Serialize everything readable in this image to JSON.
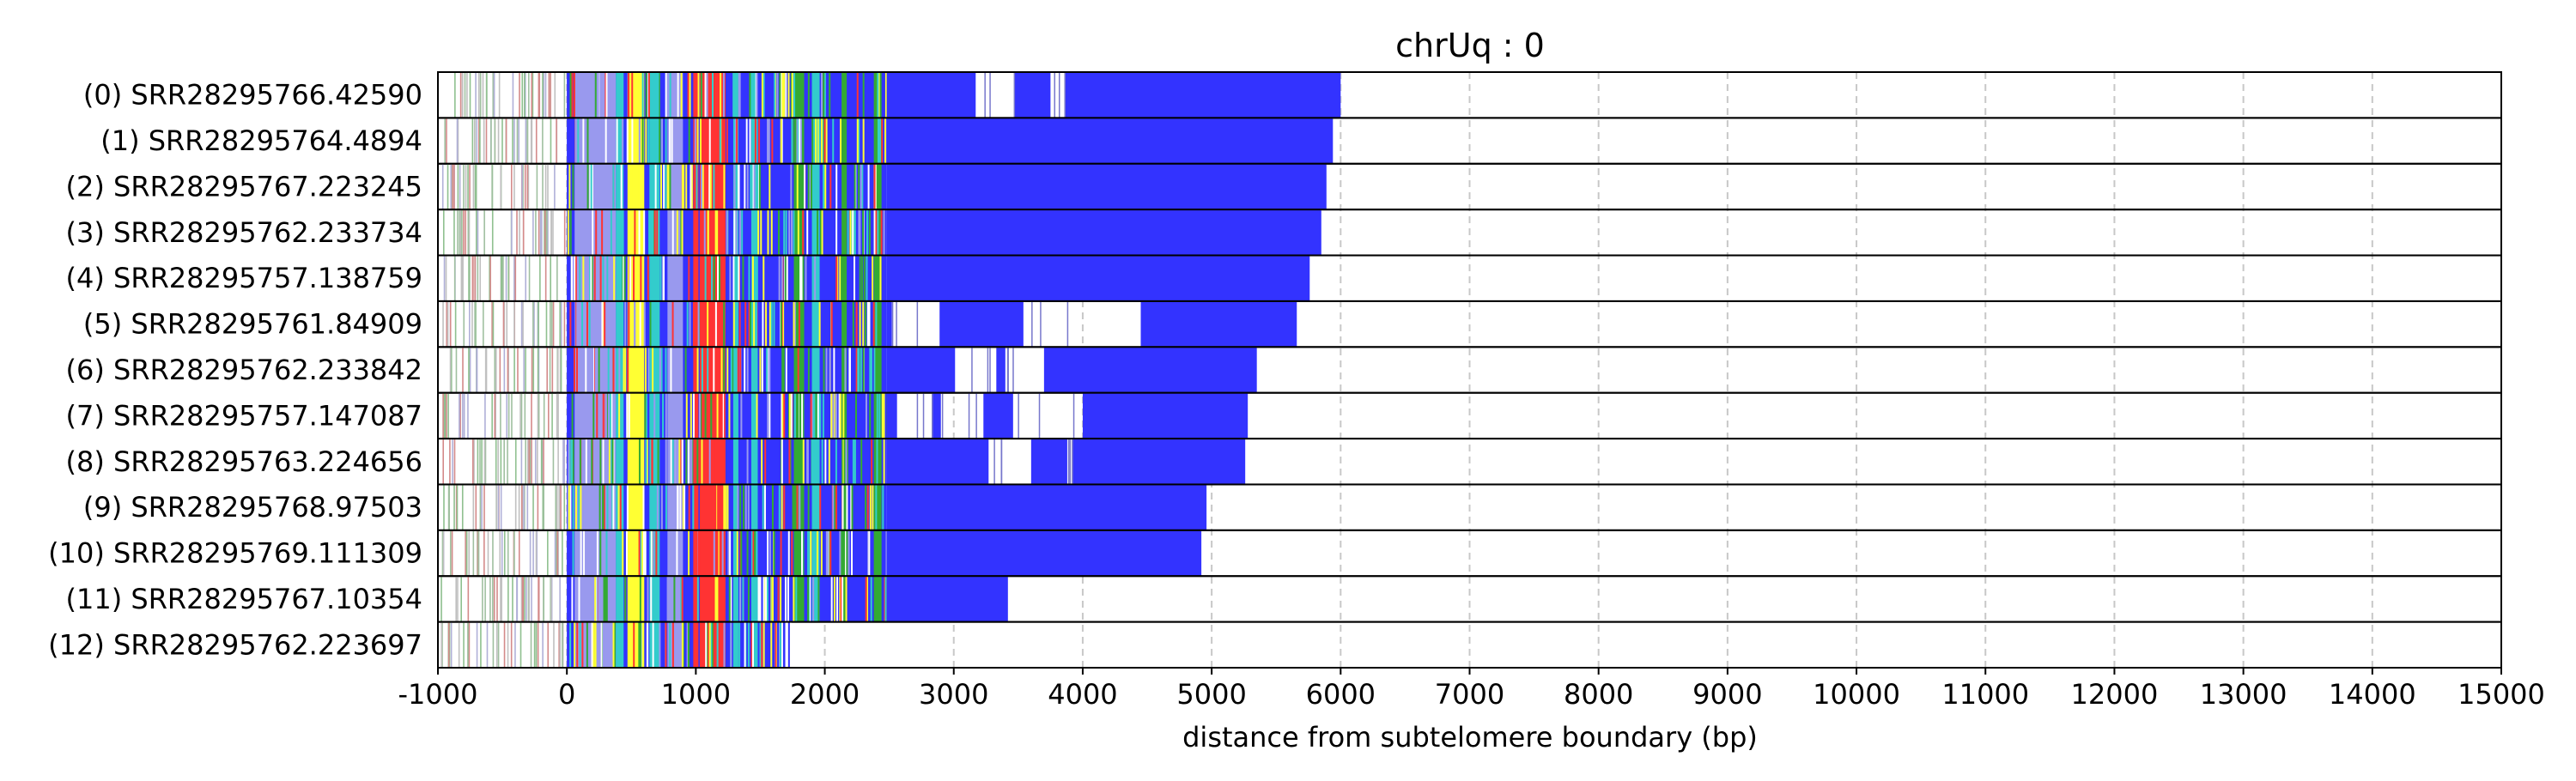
{
  "chart_data": {
    "type": "heatmap",
    "title": "chrUq : 0",
    "xlabel": "distance from subtelomere boundary (bp)",
    "ylabel": "",
    "xlim": [
      -1000,
      15000
    ],
    "xticks": [
      -1000,
      0,
      1000,
      2000,
      3000,
      4000,
      5000,
      6000,
      7000,
      8000,
      9000,
      10000,
      11000,
      12000,
      13000,
      14000,
      15000
    ],
    "xtick_labels": [
      "-1000",
      "0",
      "1000",
      "2000",
      "3000",
      "4000",
      "5000",
      "6000",
      "7000",
      "8000",
      "9000",
      "10000",
      "11000",
      "12000",
      "13000",
      "14000",
      "15000"
    ],
    "grid": "vertical dashed",
    "colors": {
      "telomere_repeat": "#3333ff",
      "variant_yellow": "#ffff33",
      "variant_red": "#ff3333",
      "variant_green": "#33aa33",
      "variant_cyan": "#33cccc",
      "variant_purple": "#9999ee",
      "row_border": "#000000",
      "grid": "#c8c8c8"
    },
    "reads": [
      {
        "label": "(0) SRR28295766.42590",
        "start": -1000,
        "end": 6000,
        "gaps": [
          [
            3170,
            3470
          ],
          [
            3750,
            3860
          ]
        ]
      },
      {
        "label": "(1) SRR28295764.4894",
        "start": -1000,
        "end": 5940,
        "gaps": []
      },
      {
        "label": "(2) SRR28295767.223245",
        "start": -1000,
        "end": 5890,
        "gaps": []
      },
      {
        "label": "(3) SRR28295762.233734",
        "start": -1000,
        "end": 5850,
        "gaps": []
      },
      {
        "label": "(4) SRR28295757.138759",
        "start": -1000,
        "end": 5760,
        "gaps": []
      },
      {
        "label": "(5) SRR28295761.84909",
        "start": -1000,
        "end": 5660,
        "gaps": [
          [
            2520,
            2890
          ],
          [
            3540,
            4450
          ]
        ]
      },
      {
        "label": "(6) SRR28295762.233842",
        "start": -1000,
        "end": 5350,
        "gaps": [
          [
            3010,
            3330
          ],
          [
            3400,
            3700
          ]
        ]
      },
      {
        "label": "(7) SRR28295757.147087",
        "start": -1000,
        "end": 5280,
        "gaps": [
          [
            2560,
            2830
          ],
          [
            2900,
            3230
          ],
          [
            3460,
            4000
          ]
        ]
      },
      {
        "label": "(8) SRR28295763.224656",
        "start": -1000,
        "end": 5260,
        "gaps": [
          [
            3270,
            3600
          ],
          [
            3880,
            3920
          ]
        ]
      },
      {
        "label": "(9) SRR28295768.97503",
        "start": -1000,
        "end": 4960,
        "gaps": []
      },
      {
        "label": "(10) SRR28295769.111309",
        "start": -1000,
        "end": 4920,
        "gaps": []
      },
      {
        "label": "(11) SRR28295767.10354",
        "start": -1000,
        "end": 3420,
        "gaps": []
      },
      {
        "label": "(12) SRR28295762.223697",
        "start": -1000,
        "end": 1730,
        "gaps": []
      }
    ]
  }
}
